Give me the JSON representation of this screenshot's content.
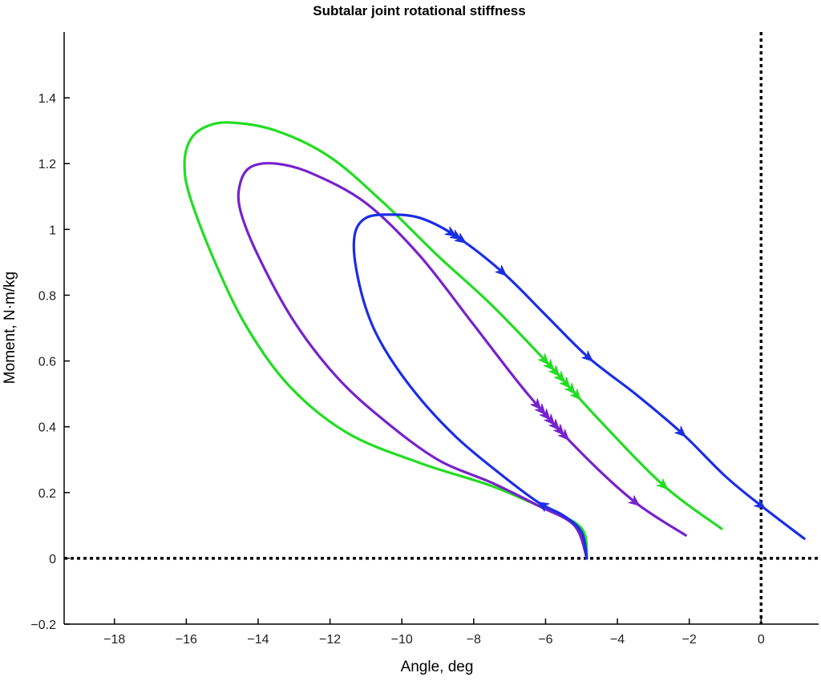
{
  "chart_data": {
    "type": "line",
    "title": "Subtalar joint rotational stiffness",
    "xlabel": "Angle, deg",
    "ylabel": "Moment, N·m/kg",
    "xlim": [
      -19.4,
      1.6
    ],
    "ylim": [
      -0.2,
      1.6
    ],
    "x_ticks": [
      -18,
      -16,
      -14,
      -12,
      -10,
      -8,
      -6,
      -4,
      -2,
      0
    ],
    "x_tick_labels": [
      "−18",
      "−16",
      "−14",
      "−12",
      "−10",
      "−8",
      "−6",
      "−4",
      "−2",
      "0"
    ],
    "y_ticks": [
      -0.2,
      0,
      0.2,
      0.4,
      0.6,
      0.8,
      1,
      1.2,
      1.4
    ],
    "y_tick_labels": [
      "−0.2",
      "0",
      "0.2",
      "0.4",
      "0.6",
      "0.8",
      "1",
      "1.2",
      "1.4"
    ],
    "reference_lines": {
      "x": 0,
      "y": 0,
      "style": "dotted"
    },
    "grid": false,
    "legend": "none",
    "series": [
      {
        "color": "#22dd22",
        "x": [
          -4.85,
          -4.9,
          -5.2,
          -6.0,
          -7.5,
          -9.5,
          -11.5,
          -13.1,
          -14.3,
          -15.2,
          -15.9,
          -16.05,
          -15.9,
          -15.5,
          -14.8,
          -13.5,
          -12.0,
          -10.5,
          -9.0,
          -7.5,
          -6.0,
          -4.5,
          -2.7,
          -1.1
        ],
        "y": [
          0.0,
          0.07,
          0.11,
          0.15,
          0.22,
          0.29,
          0.38,
          0.52,
          0.7,
          0.9,
          1.1,
          1.2,
          1.27,
          1.31,
          1.325,
          1.3,
          1.22,
          1.08,
          0.92,
          0.77,
          0.6,
          0.42,
          0.22,
          0.09
        ],
        "arrows_at_x": [
          -6.0,
          -9.8,
          -13.1,
          -15.9,
          -12.7,
          -9.1,
          -6.1,
          -2.7
        ]
      },
      {
        "color": "#7722cc",
        "x": [
          -4.85,
          -5.2,
          -6.2,
          -7.5,
          -9.0,
          -10.5,
          -11.8,
          -13.0,
          -14.0,
          -14.5,
          -14.5,
          -14.2,
          -13.5,
          -12.5,
          -11.0,
          -9.5,
          -8.0,
          -6.5,
          -5.0,
          -3.5,
          -2.1
        ],
        "y": [
          0.0,
          0.1,
          0.16,
          0.23,
          0.3,
          0.42,
          0.55,
          0.72,
          0.92,
          1.06,
          1.14,
          1.19,
          1.2,
          1.17,
          1.08,
          0.92,
          0.71,
          0.5,
          0.32,
          0.17,
          0.07
        ],
        "arrows_at_x": [
          -6.2,
          -9.0,
          -11.8,
          -14.4,
          -11.7,
          -9.0,
          -6.1,
          -3.5
        ]
      },
      {
        "color": "#1a2ee6",
        "x": [
          -4.85,
          -5.0,
          -5.5,
          -6.2,
          -7.3,
          -8.5,
          -9.6,
          -10.5,
          -11.0,
          -11.3,
          -11.3,
          -11.0,
          -10.4,
          -9.5,
          -8.5,
          -7.2,
          -6.0,
          -4.8,
          -3.5,
          -2.2,
          -1.0,
          0.0,
          1.2
        ],
        "y": [
          0.0,
          0.08,
          0.13,
          0.17,
          0.26,
          0.37,
          0.5,
          0.64,
          0.76,
          0.9,
          0.99,
          1.035,
          1.045,
          1.035,
          0.98,
          0.87,
          0.74,
          0.61,
          0.5,
          0.38,
          0.25,
          0.16,
          0.06
        ],
        "arrows_at_x": [
          -6.1,
          -8.6,
          -11.0,
          -9.5,
          -7.2,
          -4.8,
          -2.2,
          0.0
        ]
      }
    ]
  }
}
